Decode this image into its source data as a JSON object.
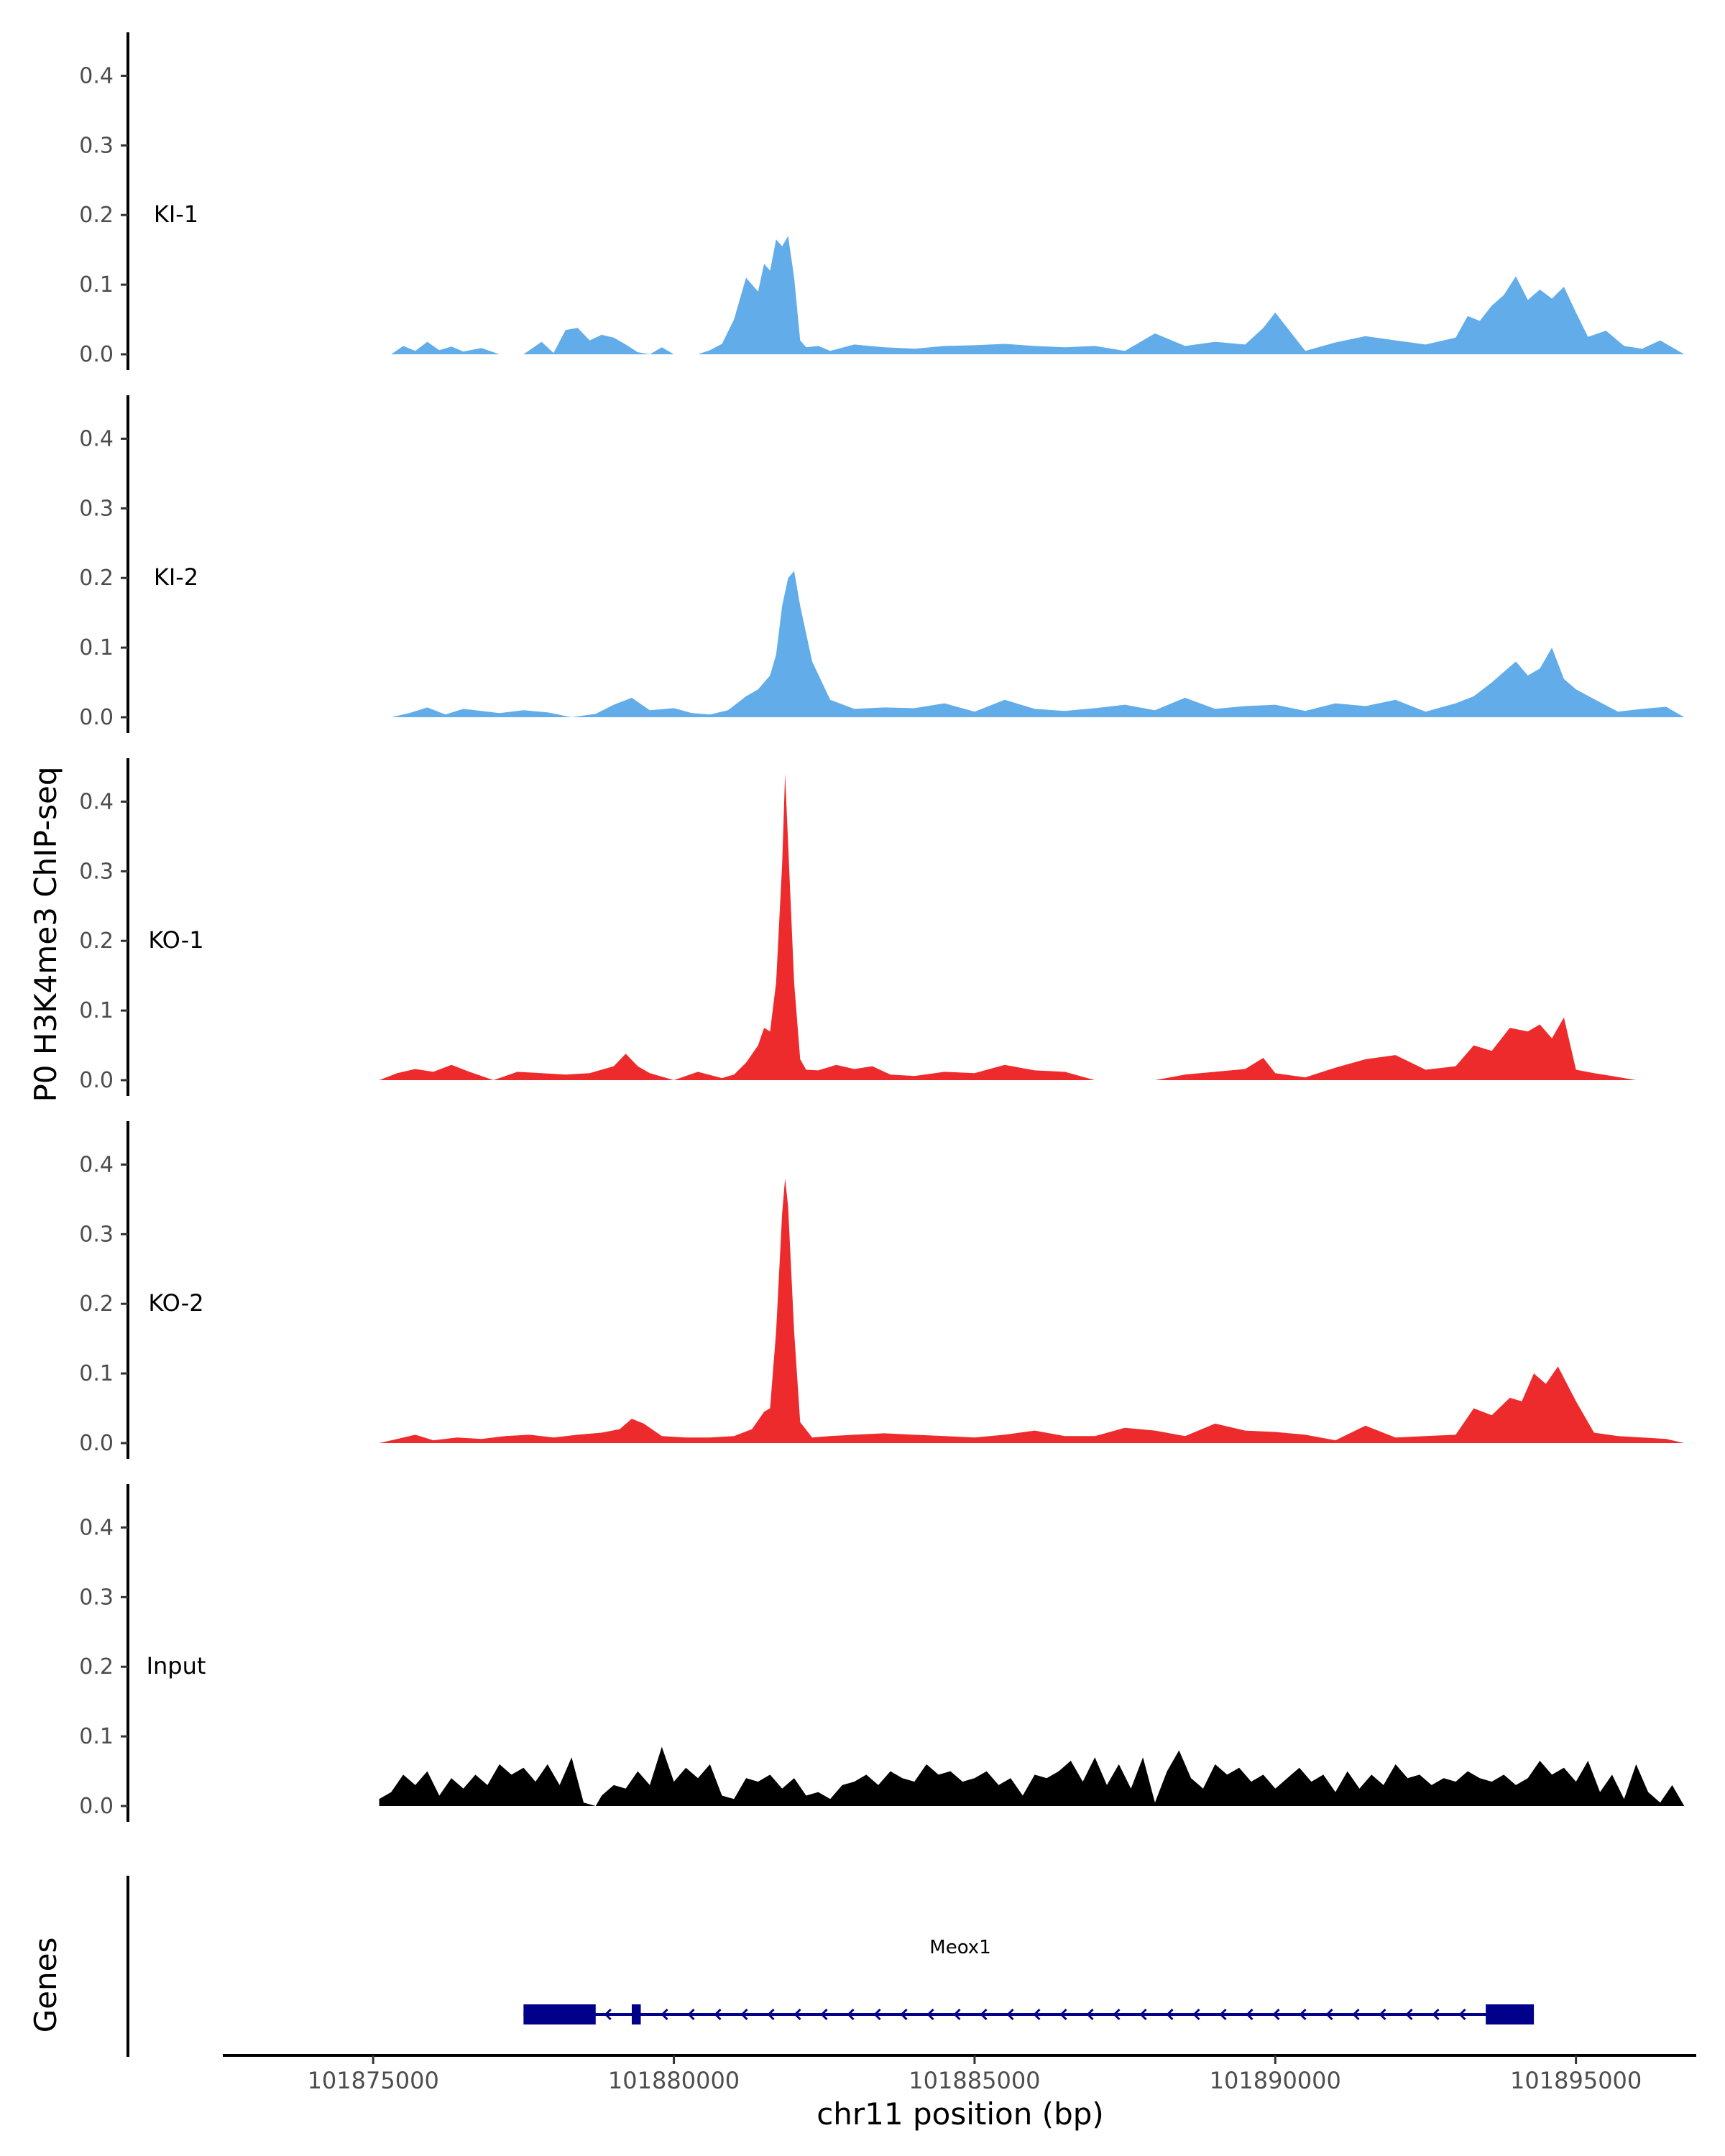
{
  "chart_data": {
    "type": "area",
    "ylabel": "P0 H3K4me3 ChIP-seq",
    "xlabel": "chr11 position (bp)",
    "xlim": [
      101872500,
      101897000
    ],
    "ylim": [
      0,
      0.45
    ],
    "y_ticks": [
      0.0,
      0.1,
      0.2,
      0.3,
      0.4
    ],
    "y_tick_labels": [
      "0.0",
      "0.1",
      "0.2",
      "0.3",
      "0.4"
    ],
    "x_ticks": [
      101875000,
      101880000,
      101885000,
      101890000,
      101895000
    ],
    "x_tick_labels": [
      "101875000",
      "101880000",
      "101885000",
      "101890000",
      "101895000"
    ],
    "colors": {
      "KI": "#62ade9",
      "KO": "#ed2b2c",
      "Input": "#000000",
      "gene": "#00008b"
    },
    "grid": false,
    "series": [
      {
        "name": "KI-1",
        "color": "#62ade9",
        "x": [
          101875300,
          101875500,
          101875700,
          101875900,
          101876100,
          101876300,
          101876500,
          101876800,
          101877100,
          101877500,
          101877800,
          101878000,
          101878200,
          101878400,
          101878600,
          101878800,
          101879000,
          101879200,
          101879400,
          101879600,
          101879800,
          101880000,
          101880200,
          101880400,
          101880600,
          101880800,
          101881000,
          101881200,
          101881400,
          101881500,
          101881600,
          101881700,
          101881800,
          101881900,
          101882000,
          101882100,
          101882200,
          101882400,
          101882600,
          101883000,
          101883500,
          101884000,
          101884500,
          101885000,
          101885500,
          101886000,
          101886500,
          101887000,
          101887500,
          101888000,
          101888500,
          101889000,
          101889500,
          101889800,
          101890000,
          101890500,
          101891000,
          101891500,
          101892000,
          101892500,
          101893000,
          101893200,
          101893400,
          101893600,
          101893800,
          101894000,
          101894200,
          101894400,
          101894600,
          101894800,
          101895000,
          101895200,
          101895500,
          101895800,
          101896100,
          101896400,
          101896800
        ],
        "values": [
          0.0,
          0.012,
          0.005,
          0.018,
          0.006,
          0.011,
          0.004,
          0.009,
          0.0,
          0.0,
          0.018,
          0.002,
          0.035,
          0.038,
          0.02,
          0.028,
          0.024,
          0.014,
          0.003,
          0.0,
          0.01,
          0.0,
          0.0,
          0.0,
          0.006,
          0.015,
          0.05,
          0.11,
          0.09,
          0.13,
          0.12,
          0.165,
          0.155,
          0.17,
          0.11,
          0.02,
          0.01,
          0.012,
          0.005,
          0.014,
          0.01,
          0.008,
          0.012,
          0.013,
          0.015,
          0.012,
          0.01,
          0.012,
          0.005,
          0.03,
          0.012,
          0.018,
          0.014,
          0.038,
          0.06,
          0.005,
          0.017,
          0.026,
          0.02,
          0.014,
          0.024,
          0.055,
          0.048,
          0.07,
          0.085,
          0.112,
          0.078,
          0.093,
          0.08,
          0.097,
          0.06,
          0.025,
          0.034,
          0.012,
          0.008,
          0.02,
          0.0
        ]
      },
      {
        "name": "KI-2",
        "color": "#62ade9",
        "x": [
          101875300,
          101875600,
          101875900,
          101876200,
          101876500,
          101876800,
          101877100,
          101877500,
          101877900,
          101878300,
          101878700,
          101879000,
          101879300,
          101879600,
          101880000,
          101880300,
          101880600,
          101880900,
          101881200,
          101881400,
          101881600,
          101881700,
          101881800,
          101881900,
          101882000,
          101882100,
          101882300,
          101882600,
          101883000,
          101883500,
          101884000,
          101884500,
          101885000,
          101885500,
          101886000,
          101886500,
          101887000,
          101887500,
          101888000,
          101888500,
          101889000,
          101889500,
          101890000,
          101890500,
          101891000,
          101891500,
          101892000,
          101892500,
          101893000,
          101893300,
          101893600,
          101893800,
          101894000,
          101894200,
          101894400,
          101894600,
          101894800,
          101895000,
          101895300,
          101895700,
          101896100,
          101896500,
          101896800
        ],
        "values": [
          0.0,
          0.006,
          0.014,
          0.004,
          0.012,
          0.009,
          0.006,
          0.01,
          0.007,
          0.0,
          0.005,
          0.018,
          0.028,
          0.01,
          0.013,
          0.006,
          0.004,
          0.01,
          0.03,
          0.04,
          0.06,
          0.09,
          0.16,
          0.2,
          0.21,
          0.16,
          0.08,
          0.025,
          0.012,
          0.014,
          0.013,
          0.02,
          0.008,
          0.025,
          0.012,
          0.009,
          0.013,
          0.018,
          0.01,
          0.028,
          0.012,
          0.016,
          0.018,
          0.009,
          0.02,
          0.016,
          0.025,
          0.008,
          0.02,
          0.03,
          0.05,
          0.065,
          0.08,
          0.06,
          0.07,
          0.1,
          0.055,
          0.04,
          0.026,
          0.008,
          0.012,
          0.015,
          0.0
        ]
      },
      {
        "name": "KO-1",
        "color": "#ed2b2c",
        "x": [
          101875100,
          101875400,
          101875700,
          101876000,
          101876300,
          101876600,
          101877000,
          101877400,
          101877800,
          101878200,
          101878600,
          101879000,
          101879200,
          101879400,
          101879600,
          101880000,
          101880400,
          101880800,
          101881000,
          101881200,
          101881400,
          101881500,
          101881600,
          101881700,
          101881800,
          101881850,
          101881900,
          101882000,
          101882100,
          101882200,
          101882400,
          101882700,
          101883000,
          101883300,
          101883600,
          101884000,
          101884500,
          101885000,
          101885500,
          101886000,
          101886500,
          101887000,
          101887500,
          101888000,
          101888500,
          101889000,
          101889500,
          101889800,
          101890000,
          101890500,
          101891000,
          101891500,
          101892000,
          101892500,
          101893000,
          101893300,
          101893600,
          101893900,
          101894200,
          101894400,
          101894600,
          101894800,
          101895000,
          101895300,
          101895600,
          101896000
        ],
        "values": [
          0.0,
          0.01,
          0.016,
          0.012,
          0.022,
          0.012,
          0.0,
          0.012,
          0.01,
          0.008,
          0.01,
          0.02,
          0.038,
          0.02,
          0.01,
          0.0,
          0.012,
          0.003,
          0.008,
          0.025,
          0.05,
          0.075,
          0.07,
          0.14,
          0.31,
          0.44,
          0.34,
          0.14,
          0.03,
          0.015,
          0.014,
          0.022,
          0.016,
          0.02,
          0.008,
          0.006,
          0.012,
          0.01,
          0.022,
          0.014,
          0.012,
          0.0,
          0.0,
          0.0,
          0.008,
          0.012,
          0.016,
          0.032,
          0.01,
          0.004,
          0.018,
          0.03,
          0.036,
          0.015,
          0.02,
          0.05,
          0.042,
          0.075,
          0.07,
          0.08,
          0.06,
          0.09,
          0.015,
          0.01,
          0.006,
          0.0
        ]
      },
      {
        "name": "KO-2",
        "color": "#ed2b2c",
        "x": [
          101875100,
          101875400,
          101875700,
          101876000,
          101876400,
          101876800,
          101877200,
          101877600,
          101878000,
          101878400,
          101878800,
          101879100,
          101879300,
          101879500,
          101879800,
          101880200,
          101880600,
          101881000,
          101881300,
          101881500,
          101881600,
          101881700,
          101881800,
          101881850,
          101881900,
          101882000,
          101882100,
          101882300,
          101882600,
          101883000,
          101883500,
          101884000,
          101884500,
          101885000,
          101885500,
          101886000,
          101886500,
          101887000,
          101887500,
          101888000,
          101888500,
          101889000,
          101889500,
          101890000,
          101890500,
          101891000,
          101891500,
          101892000,
          101892500,
          101893000,
          101893300,
          101893600,
          101893900,
          101894100,
          101894300,
          101894500,
          101894700,
          101895000,
          101895300,
          101895700,
          101896100,
          101896500,
          101896800
        ],
        "values": [
          0.0,
          0.006,
          0.012,
          0.004,
          0.008,
          0.006,
          0.01,
          0.012,
          0.008,
          0.012,
          0.015,
          0.02,
          0.035,
          0.028,
          0.01,
          0.008,
          0.008,
          0.01,
          0.02,
          0.045,
          0.05,
          0.16,
          0.33,
          0.38,
          0.34,
          0.16,
          0.03,
          0.008,
          0.01,
          0.012,
          0.014,
          0.012,
          0.01,
          0.008,
          0.012,
          0.018,
          0.01,
          0.01,
          0.022,
          0.018,
          0.01,
          0.028,
          0.018,
          0.016,
          0.012,
          0.004,
          0.025,
          0.008,
          0.01,
          0.012,
          0.05,
          0.04,
          0.065,
          0.06,
          0.1,
          0.085,
          0.11,
          0.06,
          0.015,
          0.01,
          0.008,
          0.006,
          0.0
        ]
      },
      {
        "name": "Input",
        "color": "#000000",
        "x": [
          101875100,
          101875300,
          101875500,
          101875700,
          101875900,
          101876100,
          101876300,
          101876500,
          101876700,
          101876900,
          101877100,
          101877300,
          101877500,
          101877700,
          101877900,
          101878100,
          101878300,
          101878500,
          101878700,
          101878800,
          101879000,
          101879200,
          101879400,
          101879600,
          101879800,
          101880000,
          101880200,
          101880400,
          101880600,
          101880800,
          101881000,
          101881200,
          101881400,
          101881600,
          101881800,
          101882000,
          101882200,
          101882400,
          101882600,
          101882800,
          101883000,
          101883200,
          101883400,
          101883600,
          101883800,
          101884000,
          101884200,
          101884400,
          101884600,
          101884800,
          101885000,
          101885200,
          101885400,
          101885600,
          101885800,
          101886000,
          101886200,
          101886400,
          101886600,
          101886800,
          101887000,
          101887200,
          101887400,
          101887600,
          101887800,
          101888000,
          101888200,
          101888400,
          101888600,
          101888800,
          101889000,
          101889200,
          101889400,
          101889600,
          101889800,
          101890000,
          101890200,
          101890400,
          101890600,
          101890800,
          101891000,
          101891200,
          101891400,
          101891600,
          101891800,
          101892000,
          101892200,
          101892400,
          101892600,
          101892800,
          101893000,
          101893200,
          101893400,
          101893600,
          101893800,
          101894000,
          101894200,
          101894400,
          101894600,
          101894800,
          101895000,
          101895200,
          101895400,
          101895600,
          101895800,
          101896000,
          101896200,
          101896400,
          101896600,
          101896800
        ],
        "values": [
          0.01,
          0.02,
          0.045,
          0.03,
          0.05,
          0.015,
          0.04,
          0.025,
          0.045,
          0.03,
          0.06,
          0.045,
          0.055,
          0.035,
          0.06,
          0.03,
          0.07,
          0.005,
          0.0,
          0.015,
          0.03,
          0.025,
          0.05,
          0.03,
          0.085,
          0.035,
          0.055,
          0.04,
          0.06,
          0.015,
          0.01,
          0.04,
          0.035,
          0.045,
          0.025,
          0.04,
          0.015,
          0.02,
          0.01,
          0.03,
          0.035,
          0.045,
          0.03,
          0.05,
          0.04,
          0.035,
          0.06,
          0.045,
          0.05,
          0.035,
          0.04,
          0.05,
          0.03,
          0.04,
          0.015,
          0.045,
          0.04,
          0.05,
          0.065,
          0.035,
          0.07,
          0.03,
          0.06,
          0.025,
          0.07,
          0.005,
          0.05,
          0.08,
          0.04,
          0.025,
          0.06,
          0.045,
          0.055,
          0.035,
          0.045,
          0.025,
          0.04,
          0.055,
          0.035,
          0.045,
          0.02,
          0.05,
          0.025,
          0.045,
          0.03,
          0.06,
          0.04,
          0.045,
          0.03,
          0.04,
          0.035,
          0.05,
          0.04,
          0.035,
          0.045,
          0.03,
          0.04,
          0.065,
          0.045,
          0.055,
          0.035,
          0.065,
          0.02,
          0.045,
          0.01,
          0.06,
          0.02,
          0.005,
          0.03,
          0.0
        ]
      }
    ],
    "genes_track": {
      "label": "Genes",
      "gene_name": "Meox1",
      "start": 101877500,
      "end": 101894300,
      "strand": "-",
      "exons": [
        {
          "start": 101877500,
          "end": 101878700
        },
        {
          "start": 101879300,
          "end": 101879450
        },
        {
          "start": 101893500,
          "end": 101894300
        }
      ]
    }
  }
}
